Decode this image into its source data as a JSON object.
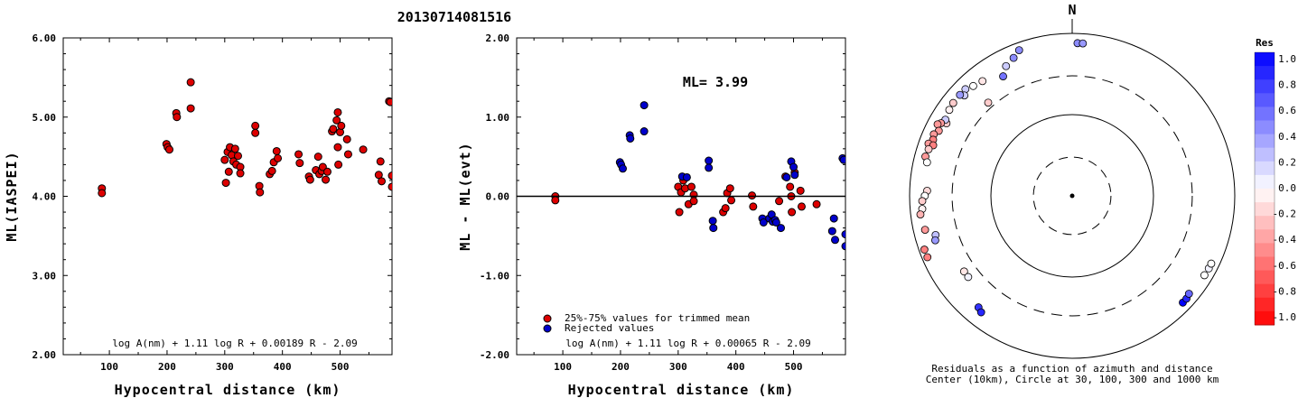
{
  "title": "20130714081516",
  "chart_data": [
    {
      "type": "scatter",
      "xlabel": "Hypocentral distance (km)",
      "ylabel": "ML(IASPEI)",
      "xlim": [
        20,
        590
      ],
      "ylim": [
        2.0,
        6.0
      ],
      "xticks": [
        "100",
        "200",
        "300",
        "400",
        "500"
      ],
      "yticks": [
        "2.00",
        "3.00",
        "4.00",
        "5.00",
        "6.00"
      ],
      "annotation": "log A(nm) + 1.11 log R + 0.00189 R - 2.09",
      "color": "#dd0000",
      "points": [
        [
          87,
          4.1
        ],
        [
          87,
          4.04
        ],
        [
          199,
          4.66
        ],
        [
          201,
          4.62
        ],
        [
          204,
          4.59
        ],
        [
          216,
          5.05
        ],
        [
          217,
          5.0
        ],
        [
          241,
          5.44
        ],
        [
          241,
          5.11
        ],
        [
          300,
          4.46
        ],
        [
          302,
          4.17
        ],
        [
          305,
          4.56
        ],
        [
          307,
          4.31
        ],
        [
          309,
          4.62
        ],
        [
          312,
          4.52
        ],
        [
          315,
          4.44
        ],
        [
          318,
          4.6
        ],
        [
          320,
          4.4
        ],
        [
          323,
          4.51
        ],
        [
          327,
          4.37
        ],
        [
          327,
          4.29
        ],
        [
          353,
          4.89
        ],
        [
          353,
          4.8
        ],
        [
          360,
          4.13
        ],
        [
          361,
          4.05
        ],
        [
          378,
          4.28
        ],
        [
          382,
          4.32
        ],
        [
          385,
          4.43
        ],
        [
          390,
          4.57
        ],
        [
          392,
          4.48
        ],
        [
          428,
          4.53
        ],
        [
          430,
          4.42
        ],
        [
          446,
          4.25
        ],
        [
          448,
          4.21
        ],
        [
          458,
          4.33
        ],
        [
          462,
          4.5
        ],
        [
          464,
          4.28
        ],
        [
          468,
          4.32
        ],
        [
          470,
          4.37
        ],
        [
          475,
          4.21
        ],
        [
          478,
          4.31
        ],
        [
          486,
          4.82
        ],
        [
          488,
          4.85
        ],
        [
          494,
          4.96
        ],
        [
          496,
          5.06
        ],
        [
          496,
          4.62
        ],
        [
          497,
          4.4
        ],
        [
          500,
          4.81
        ],
        [
          502,
          4.89
        ],
        [
          512,
          4.72
        ],
        [
          514,
          4.53
        ],
        [
          540,
          4.59
        ],
        [
          567,
          4.27
        ],
        [
          570,
          4.44
        ],
        [
          572,
          4.19
        ],
        [
          585,
          5.2
        ],
        [
          587,
          5.19
        ],
        [
          590,
          4.26
        ],
        [
          590,
          4.12
        ]
      ]
    },
    {
      "type": "scatter",
      "xlabel": "Hypocentral distance (km)",
      "ylabel": "ML - ML(evt)",
      "xlim": [
        20,
        590
      ],
      "ylim": [
        -2.0,
        2.0
      ],
      "xticks": [
        "100",
        "200",
        "300",
        "400",
        "500"
      ],
      "yticks": [
        "-2.00",
        "-1.00",
        "0.00",
        "1.00",
        "2.00"
      ],
      "ml_label": "ML= 3.99",
      "annotation": "log A(nm) + 1.11 log R + 0.00065 R - 2.09",
      "legend": {
        "position": "bottom-left",
        "items": [
          {
            "label": "25%-75% values for trimmed mean",
            "color": "#dd0000"
          },
          {
            "label": "Rejected values",
            "color": "#0000cc"
          }
        ]
      },
      "series": [
        {
          "name": "25%-75% values for trimmed mean",
          "color": "#dd0000",
          "points": [
            [
              87,
              0.0
            ],
            [
              87,
              -0.05
            ],
            [
              300,
              0.12
            ],
            [
              302,
              -0.2
            ],
            [
              305,
              0.05
            ],
            [
              309,
              0.2
            ],
            [
              312,
              0.1
            ],
            [
              318,
              -0.1
            ],
            [
              323,
              0.12
            ],
            [
              327,
              0.02
            ],
            [
              327,
              -0.06
            ],
            [
              378,
              -0.2
            ],
            [
              382,
              -0.15
            ],
            [
              385,
              0.04
            ],
            [
              390,
              0.1
            ],
            [
              392,
              -0.05
            ],
            [
              428,
              0.01
            ],
            [
              430,
              -0.13
            ],
            [
              475,
              -0.06
            ],
            [
              486,
              0.25
            ],
            [
              494,
              0.12
            ],
            [
              496,
              0.0
            ],
            [
              497,
              -0.2
            ],
            [
              502,
              0.3
            ],
            [
              512,
              0.07
            ],
            [
              514,
              -0.13
            ],
            [
              540,
              -0.1
            ]
          ]
        },
        {
          "name": "Rejected values",
          "color": "#0000cc",
          "points": [
            [
              199,
              0.43
            ],
            [
              201,
              0.4
            ],
            [
              204,
              0.35
            ],
            [
              216,
              0.77
            ],
            [
              217,
              0.73
            ],
            [
              241,
              1.15
            ],
            [
              241,
              0.82
            ],
            [
              307,
              0.25
            ],
            [
              315,
              0.24
            ],
            [
              353,
              0.45
            ],
            [
              353,
              0.36
            ],
            [
              360,
              -0.31
            ],
            [
              361,
              -0.4
            ],
            [
              446,
              -0.28
            ],
            [
              448,
              -0.33
            ],
            [
              458,
              -0.28
            ],
            [
              462,
              -0.23
            ],
            [
              464,
              -0.32
            ],
            [
              468,
              -0.3
            ],
            [
              470,
              -0.33
            ],
            [
              478,
              -0.4
            ],
            [
              488,
              0.24
            ],
            [
              496,
              0.44
            ],
            [
              500,
              0.37
            ],
            [
              502,
              0.27
            ],
            [
              567,
              -0.44
            ],
            [
              570,
              -0.28
            ],
            [
              572,
              -0.55
            ],
            [
              585,
              0.48
            ],
            [
              587,
              0.46
            ],
            [
              590,
              -0.48
            ],
            [
              590,
              -0.63
            ]
          ]
        }
      ]
    },
    {
      "type": "scatter",
      "subtype": "polar",
      "north_label": "N",
      "caption_line1": "Residuals as a function of azimuth and distance",
      "caption_line2": "Center (10km), Circle at 30, 100, 300 and 1000 km",
      "colorbar": {
        "title": "Res",
        "ticks": [
          "1.0",
          "0.8",
          "0.6",
          "0.4",
          "0.2",
          "0.0",
          "-0.2",
          "-0.4",
          "-0.6",
          "-0.8",
          "-1.0"
        ],
        "positive_color": "#0000ff",
        "negative_color": "#ff0000"
      },
      "points": [
        {
          "az": 2,
          "dist": 760,
          "res": 0.45
        },
        {
          "az": 4,
          "dist": 760,
          "res": 0.4
        },
        {
          "az": 340,
          "dist": 810,
          "res": 0.45
        },
        {
          "az": 337,
          "dist": 700,
          "res": 0.45
        },
        {
          "az": 333,
          "dist": 620,
          "res": 0.2
        },
        {
          "az": 330,
          "dist": 500,
          "res": 0.55
        },
        {
          "az": 318,
          "dist": 350,
          "res": -0.2
        },
        {
          "az": 322,
          "dist": 620,
          "res": -0.1
        },
        {
          "az": 318,
          "dist": 660,
          "res": 0.0
        },
        {
          "az": 315,
          "dist": 720,
          "res": 0.2
        },
        {
          "az": 313,
          "dist": 650,
          "res": 0.2
        },
        {
          "az": 312,
          "dist": 720,
          "res": 0.4
        },
        {
          "az": 308,
          "dist": 720,
          "res": -0.2
        },
        {
          "az": 305,
          "dist": 700,
          "res": -0.05
        },
        {
          "az": 300,
          "dist": 610,
          "res": -0.2
        },
        {
          "az": 301,
          "dist": 660,
          "res": 0.2
        },
        {
          "az": 299,
          "dist": 700,
          "res": -0.4
        },
        {
          "az": 298,
          "dist": 750,
          "res": -0.4
        },
        {
          "az": 296,
          "dist": 670,
          "res": -0.4
        },
        {
          "az": 294,
          "dist": 730,
          "res": -0.4
        },
        {
          "az": 292,
          "dist": 700,
          "res": -0.5
        },
        {
          "az": 290,
          "dist": 760,
          "res": -0.4
        },
        {
          "az": 290,
          "dist": 660,
          "res": -0.5
        },
        {
          "az": 288,
          "dist": 720,
          "res": -0.2
        },
        {
          "az": 285,
          "dist": 740,
          "res": -0.4
        },
        {
          "az": 283,
          "dist": 680,
          "res": 0.0
        },
        {
          "az": 272,
          "dist": 610,
          "res": -0.15
        },
        {
          "az": 270,
          "dist": 650,
          "res": 0.0
        },
        {
          "az": 268,
          "dist": 700,
          "res": -0.2
        },
        {
          "az": 265,
          "dist": 710,
          "res": -0.05
        },
        {
          "az": 263,
          "dist": 760,
          "res": -0.3
        },
        {
          "az": 257,
          "dist": 720,
          "res": -0.4
        },
        {
          "az": 254,
          "dist": 560,
          "res": 0.25
        },
        {
          "az": 252,
          "dist": 590,
          "res": 0.4
        },
        {
          "az": 250,
          "dist": 860,
          "res": -0.5
        },
        {
          "az": 247,
          "dist": 860,
          "res": -0.5
        },
        {
          "az": 235,
          "dist": 420,
          "res": -0.1
        },
        {
          "az": 232,
          "dist": 420,
          "res": 0.05
        },
        {
          "az": 220,
          "dist": 620,
          "res": 0.8
        },
        {
          "az": 218,
          "dist": 660,
          "res": 0.85
        },
        {
          "az": 134,
          "dist": 780,
          "res": 1.0
        },
        {
          "az": 132,
          "dist": 780,
          "res": 0.85
        },
        {
          "az": 130,
          "dist": 750,
          "res": 0.6
        },
        {
          "az": 121,
          "dist": 790,
          "res": 0.0
        },
        {
          "az": 118,
          "dist": 800,
          "res": 0.05
        },
        {
          "az": 116,
          "dist": 800,
          "res": 0.0
        }
      ]
    }
  ]
}
